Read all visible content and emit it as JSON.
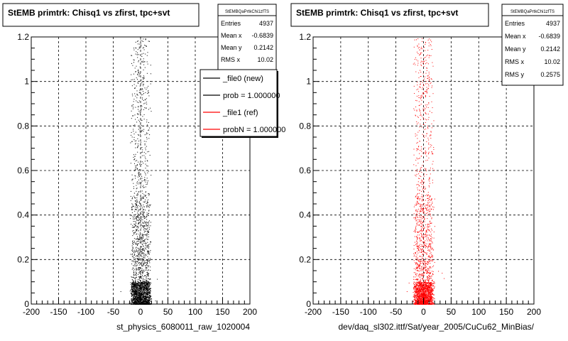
{
  "chart_data": [
    {
      "type": "scatter",
      "title": "StEMB primtrk: Chisq1 vs zfirst, tpc+svt",
      "xlabel": "st_physics_6080011_raw_1020004",
      "ylabel": "",
      "xlim": [
        -200,
        200
      ],
      "ylim": [
        0,
        1.2
      ],
      "x_ticks": [
        "-200",
        "-150",
        "-100",
        "-50",
        "0",
        "50",
        "100",
        "150",
        "200"
      ],
      "y_ticks": [
        "0",
        "0.2",
        "0.4",
        "0.6",
        "0.8",
        "1",
        "1.2"
      ],
      "grid": true,
      "point_color": "#000000",
      "distribution": {
        "x_center": 0,
        "x_half_width": 20,
        "y_max": 1.2,
        "dense_below": 0.1
      },
      "stats": {
        "name": "StEMBQaPrtkChi1zfTS",
        "rows": [
          {
            "label": "Entries",
            "value": "4937"
          },
          {
            "label": "Mean x",
            "value": "-0.6839"
          },
          {
            "label": "Mean y",
            "value": "0.2142"
          },
          {
            "label": "RMS x",
            "value": "10.02"
          }
        ]
      },
      "legend": {
        "placement": "top-right",
        "entries": [
          {
            "label": "_file0 (new)",
            "color": "#000000"
          },
          {
            "label": "prob = 1.000000",
            "color": "#000000"
          },
          {
            "label": "_file1 (ref)",
            "color": "#ff0000"
          },
          {
            "label": "probN = 1.000000",
            "color": "#ff0000"
          }
        ]
      }
    },
    {
      "type": "scatter",
      "title": "StEMB primtrk: Chisq1 vs zfirst, tpc+svt",
      "xlabel": "dev/daq_sl302.ittf/Sat/year_2005/CuCu62_MinBias/",
      "ylabel": "",
      "xlim": [
        -200,
        200
      ],
      "ylim": [
        0,
        1.2
      ],
      "x_ticks": [
        "-200",
        "-150",
        "-100",
        "-50",
        "0",
        "50",
        "100",
        "150",
        "200"
      ],
      "y_ticks": [
        "0",
        "0.2",
        "0.4",
        "0.6",
        "0.8",
        "1",
        "1.2"
      ],
      "grid": true,
      "point_color": "#ff0000",
      "distribution": {
        "x_center": 0,
        "x_half_width": 20,
        "y_max": 1.2,
        "dense_below": 0.1
      },
      "stats": {
        "name": "StEMBQaPrtkChi1zfTS",
        "rows": [
          {
            "label": "Entries",
            "value": "4937"
          },
          {
            "label": "Mean x",
            "value": "-0.6839"
          },
          {
            "label": "Mean y",
            "value": "0.2142"
          },
          {
            "label": "RMS x",
            "value": "10.02"
          },
          {
            "label": "RMS y",
            "value": "0.2575"
          }
        ]
      }
    }
  ]
}
